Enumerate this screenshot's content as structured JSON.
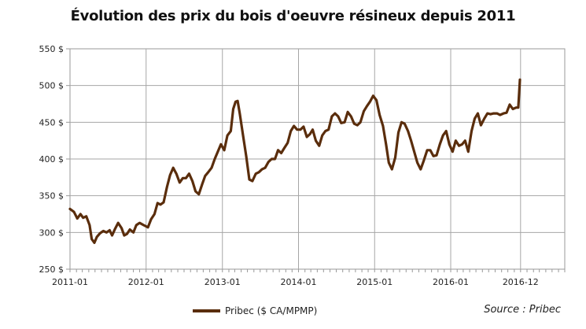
{
  "chart_data": {
    "type": "line",
    "title": "Évolution des prix du bois d'oeuvre résineux depuis 2011",
    "xlabel": "",
    "ylabel": "",
    "source": "Source : Pribec",
    "x_ticks": [
      "2011-01",
      "2012-01",
      "2013-01",
      "2014-01",
      "2015-01",
      "2016-01",
      "2016-12"
    ],
    "y_ticks": [
      "250 $",
      "300 $",
      "350 $",
      "400 $",
      "450 $",
      "500 $",
      "550 $"
    ],
    "ylim": [
      250,
      550
    ],
    "xlim": [
      "2011-01",
      "2017-07"
    ],
    "grid": true,
    "legend_position": "bottom",
    "color": "#5a2d0c",
    "series": [
      {
        "name": "Pribec ($ CA/MPMP)",
        "points": [
          [
            "2011-01-01",
            332
          ],
          [
            "2011-01-20",
            328
          ],
          [
            "2011-02-05",
            319
          ],
          [
            "2011-02-20",
            325
          ],
          [
            "2011-03-05",
            320
          ],
          [
            "2011-03-20",
            322
          ],
          [
            "2011-04-05",
            310
          ],
          [
            "2011-04-15",
            291
          ],
          [
            "2011-04-28",
            286
          ],
          [
            "2011-05-10",
            294
          ],
          [
            "2011-05-25",
            299
          ],
          [
            "2011-06-10",
            302
          ],
          [
            "2011-06-25",
            300
          ],
          [
            "2011-07-10",
            303
          ],
          [
            "2011-07-22",
            296
          ],
          [
            "2011-08-05",
            305
          ],
          [
            "2011-08-20",
            313
          ],
          [
            "2011-09-05",
            306
          ],
          [
            "2011-09-18",
            296
          ],
          [
            "2011-10-01",
            298
          ],
          [
            "2011-10-15",
            304
          ],
          [
            "2011-11-01",
            300
          ],
          [
            "2011-11-15",
            310
          ],
          [
            "2011-12-01",
            313
          ],
          [
            "2011-12-20",
            310
          ],
          [
            "2012-01-10",
            307
          ],
          [
            "2012-01-25",
            318
          ],
          [
            "2012-02-10",
            325
          ],
          [
            "2012-02-25",
            340
          ],
          [
            "2012-03-10",
            338
          ],
          [
            "2012-03-25",
            341
          ],
          [
            "2012-04-10",
            362
          ],
          [
            "2012-04-25",
            378
          ],
          [
            "2012-05-10",
            388
          ],
          [
            "2012-05-25",
            380
          ],
          [
            "2012-06-10",
            368
          ],
          [
            "2012-06-25",
            374
          ],
          [
            "2012-07-10",
            374
          ],
          [
            "2012-07-25",
            380
          ],
          [
            "2012-08-10",
            370
          ],
          [
            "2012-08-25",
            356
          ],
          [
            "2012-09-10",
            352
          ],
          [
            "2012-09-25",
            365
          ],
          [
            "2012-10-10",
            377
          ],
          [
            "2012-10-25",
            382
          ],
          [
            "2012-11-10",
            388
          ],
          [
            "2012-11-25",
            400
          ],
          [
            "2012-12-10",
            410
          ],
          [
            "2012-12-25",
            420
          ],
          [
            "2013-01-10",
            412
          ],
          [
            "2013-01-25",
            432
          ],
          [
            "2013-02-10",
            438
          ],
          [
            "2013-02-22",
            468
          ],
          [
            "2013-03-05",
            478
          ],
          [
            "2013-03-15",
            479
          ],
          [
            "2013-03-25",
            462
          ],
          [
            "2013-04-10",
            432
          ],
          [
            "2013-04-25",
            404
          ],
          [
            "2013-05-10",
            372
          ],
          [
            "2013-05-25",
            370
          ],
          [
            "2013-06-10",
            380
          ],
          [
            "2013-06-25",
            382
          ],
          [
            "2013-07-10",
            386
          ],
          [
            "2013-07-25",
            388
          ],
          [
            "2013-08-10",
            396
          ],
          [
            "2013-08-25",
            400
          ],
          [
            "2013-09-10",
            400
          ],
          [
            "2013-09-25",
            412
          ],
          [
            "2013-10-10",
            408
          ],
          [
            "2013-10-25",
            415
          ],
          [
            "2013-11-10",
            422
          ],
          [
            "2013-11-25",
            438
          ],
          [
            "2013-12-10",
            445
          ],
          [
            "2013-12-25",
            440
          ],
          [
            "2014-01-10",
            440
          ],
          [
            "2014-01-25",
            444
          ],
          [
            "2014-02-10",
            430
          ],
          [
            "2014-02-25",
            434
          ],
          [
            "2014-03-10",
            440
          ],
          [
            "2014-03-25",
            425
          ],
          [
            "2014-04-10",
            418
          ],
          [
            "2014-04-25",
            432
          ],
          [
            "2014-05-10",
            438
          ],
          [
            "2014-05-25",
            440
          ],
          [
            "2014-06-10",
            458
          ],
          [
            "2014-06-25",
            462
          ],
          [
            "2014-07-10",
            458
          ],
          [
            "2014-07-25",
            449
          ],
          [
            "2014-08-10",
            450
          ],
          [
            "2014-08-25",
            464
          ],
          [
            "2014-09-10",
            458
          ],
          [
            "2014-09-25",
            448
          ],
          [
            "2014-10-10",
            446
          ],
          [
            "2014-10-25",
            450
          ],
          [
            "2014-11-10",
            465
          ],
          [
            "2014-11-25",
            472
          ],
          [
            "2014-12-10",
            478
          ],
          [
            "2014-12-25",
            486
          ],
          [
            "2015-01-10",
            480
          ],
          [
            "2015-01-25",
            460
          ],
          [
            "2015-02-10",
            445
          ],
          [
            "2015-02-25",
            420
          ],
          [
            "2015-03-10",
            395
          ],
          [
            "2015-03-25",
            386
          ],
          [
            "2015-04-10",
            402
          ],
          [
            "2015-04-25",
            436
          ],
          [
            "2015-05-10",
            450
          ],
          [
            "2015-05-25",
            448
          ],
          [
            "2015-06-10",
            438
          ],
          [
            "2015-06-25",
            425
          ],
          [
            "2015-07-10",
            410
          ],
          [
            "2015-07-25",
            395
          ],
          [
            "2015-08-10",
            386
          ],
          [
            "2015-08-25",
            398
          ],
          [
            "2015-09-10",
            412
          ],
          [
            "2015-09-25",
            412
          ],
          [
            "2015-10-10",
            404
          ],
          [
            "2015-10-25",
            405
          ],
          [
            "2015-11-10",
            420
          ],
          [
            "2015-11-25",
            432
          ],
          [
            "2015-12-10",
            438
          ],
          [
            "2015-12-25",
            420
          ],
          [
            "2016-01-10",
            410
          ],
          [
            "2016-01-25",
            425
          ],
          [
            "2016-02-10",
            418
          ],
          [
            "2016-02-25",
            420
          ],
          [
            "2016-03-10",
            425
          ],
          [
            "2016-03-25",
            410
          ],
          [
            "2016-04-10",
            438
          ],
          [
            "2016-04-25",
            455
          ],
          [
            "2016-05-10",
            462
          ],
          [
            "2016-05-25",
            446
          ],
          [
            "2016-06-10",
            455
          ],
          [
            "2016-06-25",
            462
          ],
          [
            "2016-07-10",
            461
          ],
          [
            "2016-07-25",
            462
          ],
          [
            "2016-08-10",
            462
          ],
          [
            "2016-08-25",
            460
          ],
          [
            "2016-09-10",
            462
          ],
          [
            "2016-09-25",
            463
          ],
          [
            "2016-10-10",
            474
          ],
          [
            "2016-10-25",
            468
          ],
          [
            "2016-11-10",
            470
          ],
          [
            "2016-11-20",
            470
          ],
          [
            "2016-11-28",
            508
          ]
        ]
      }
    ]
  }
}
